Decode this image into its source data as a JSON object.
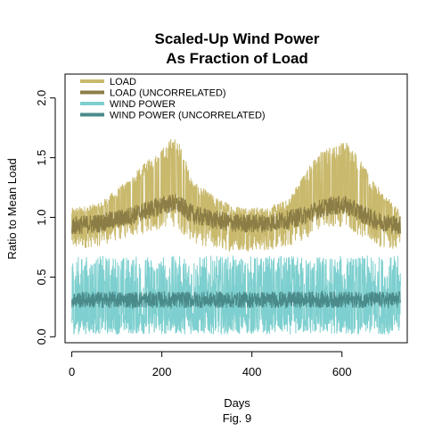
{
  "chart_data": {
    "type": "line",
    "title_line1": "Scaled-Up Wind Power",
    "title_line2": "As Fraction of Load",
    "xlabel": "Days",
    "caption": "Fig. 9",
    "ylabel": "Ratio to Mean Load",
    "xlim": [
      -15,
      745
    ],
    "ylim": [
      -0.05,
      2.2
    ],
    "x_ticks": [
      0,
      200,
      400,
      600
    ],
    "y_ticks": [
      0.0,
      0.5,
      1.0,
      1.5,
      2.0
    ],
    "x_tick_labels": [
      "0",
      "200",
      "400",
      "600"
    ],
    "y_tick_labels": [
      "0.0",
      "0.5",
      "1.0",
      "1.5",
      "2.0"
    ],
    "legend_position": "top-left",
    "grid": false,
    "series": [
      {
        "name": "LOAD",
        "color": "#c9b96c",
        "x_days": [
          0,
          60,
          120,
          160,
          200,
          225,
          240,
          270,
          330,
          365,
          430,
          480,
          520,
          550,
          580,
          610,
          630,
          670,
          730
        ],
        "upper": [
          1.08,
          1.12,
          1.3,
          1.45,
          1.58,
          1.68,
          1.62,
          1.3,
          1.15,
          1.1,
          1.08,
          1.15,
          1.4,
          1.55,
          1.6,
          1.65,
          1.55,
          1.3,
          1.05
        ],
        "lower": [
          0.72,
          0.76,
          0.82,
          0.86,
          0.9,
          0.92,
          0.88,
          0.78,
          0.72,
          0.72,
          0.72,
          0.75,
          0.82,
          0.88,
          0.92,
          0.92,
          0.86,
          0.76,
          0.72
        ]
      },
      {
        "name": "LOAD (UNCORRELATED)",
        "color": "#8b7d45",
        "x_days": [
          0,
          60,
          120,
          160,
          200,
          225,
          240,
          270,
          330,
          365,
          430,
          480,
          520,
          550,
          580,
          610,
          630,
          670,
          730
        ],
        "values": [
          0.93,
          0.95,
          1.0,
          1.05,
          1.1,
          1.12,
          1.1,
          1.02,
          0.97,
          0.95,
          0.95,
          0.98,
          1.02,
          1.07,
          1.1,
          1.1,
          1.06,
          0.98,
          0.93
        ]
      },
      {
        "name": "WIND POWER",
        "color": "#7ecfcf",
        "range": [
          0.02,
          0.68
        ],
        "mean": 0.31
      },
      {
        "name": "WIND POWER (UNCORRELATED)",
        "color": "#4a8a8a",
        "mean": 0.31,
        "band": [
          0.24,
          0.38
        ]
      }
    ]
  }
}
